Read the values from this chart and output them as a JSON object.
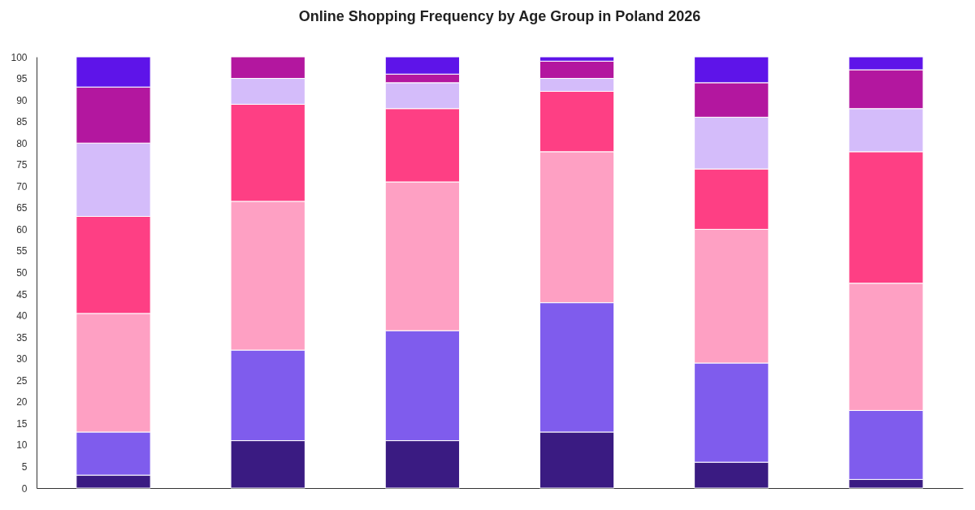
{
  "chart_data": {
    "type": "bar",
    "title": "Online Shopping Frequency by Age Group in Poland 2026",
    "categories": [
      null,
      null,
      null,
      null,
      null,
      null
    ],
    "stacked": true,
    "ylim": [
      0,
      100
    ],
    "yticks": [
      0,
      5,
      10,
      15,
      20,
      25,
      30,
      35,
      40,
      45,
      50,
      55,
      60,
      65,
      70,
      75,
      80,
      85,
      90,
      95,
      100
    ],
    "grid": false,
    "legend": false,
    "tick_labels": "y",
    "series": [
      {
        "color": "#3a1b82",
        "values": [
          3,
          11,
          11,
          13,
          6,
          2
        ]
      },
      {
        "color": "#7f5ced",
        "values": [
          10,
          21,
          25.5,
          30,
          23,
          16
        ]
      },
      {
        "color": "#fea0c3",
        "values": [
          27.5,
          34.5,
          34.5,
          35,
          31,
          29.5
        ]
      },
      {
        "color": "#fe3f84",
        "values": [
          22.5,
          22.5,
          17,
          14,
          14,
          30.5
        ]
      },
      {
        "color": "#d4bcfa",
        "values": [
          17,
          6,
          6,
          3,
          12,
          10
        ]
      },
      {
        "color": "#b3179f",
        "values": [
          13,
          5,
          2,
          4,
          8,
          9
        ]
      },
      {
        "color": "#5e14e9",
        "values": [
          7,
          0,
          4,
          1,
          6,
          3
        ]
      }
    ]
  }
}
